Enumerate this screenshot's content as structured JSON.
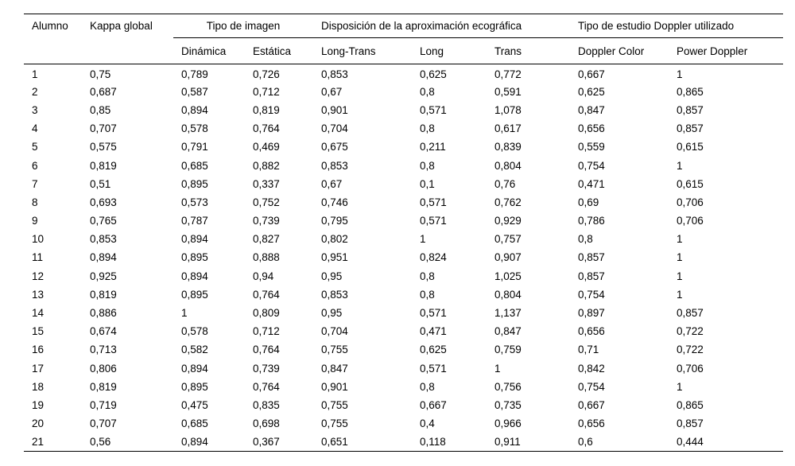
{
  "table": {
    "columns": {
      "alumno": "Alumno",
      "kappa_global": "Kappa global",
      "group_imagen": "Tipo de imagen",
      "group_disposicion": "Disposición de la aproximación ecográfica",
      "group_doppler": "Tipo de estudio Doppler utilizado",
      "sub": {
        "dinamica": "Dinámica",
        "estatica": "Estática",
        "long_trans": "Long-Trans",
        "long": "Long",
        "trans": "Trans",
        "doppler_color": "Doppler Color",
        "power_doppler": "Power Doppler"
      }
    },
    "rows": [
      [
        "1",
        "0,75",
        "0,789",
        "0,726",
        "0,853",
        "0,625",
        "0,772",
        "0,667",
        "1"
      ],
      [
        "2",
        "0,687",
        "0,587",
        "0,712",
        "0,67",
        "0,8",
        "0,591",
        "0,625",
        "0,865"
      ],
      [
        "3",
        "0,85",
        "0,894",
        "0,819",
        "0,901",
        "0,571",
        "1,078",
        "0,847",
        "0,857"
      ],
      [
        "4",
        "0,707",
        "0,578",
        "0,764",
        "0,704",
        "0,8",
        "0,617",
        "0,656",
        "0,857"
      ],
      [
        "5",
        "0,575",
        "0,791",
        "0,469",
        "0,675",
        "0,211",
        "0,839",
        "0,559",
        "0,615"
      ],
      [
        "6",
        "0,819",
        "0,685",
        "0,882",
        "0,853",
        "0,8",
        "0,804",
        "0,754",
        "1"
      ],
      [
        "7",
        "0,51",
        "0,895",
        "0,337",
        "0,67",
        "0,1",
        "0,76",
        "0,471",
        "0,615"
      ],
      [
        "8",
        "0,693",
        "0,573",
        "0,752",
        "0,746",
        "0,571",
        "0,762",
        "0,69",
        "0,706"
      ],
      [
        "9",
        "0,765",
        "0,787",
        "0,739",
        "0,795",
        "0,571",
        "0,929",
        "0,786",
        "0,706"
      ],
      [
        "10",
        "0,853",
        "0,894",
        "0,827",
        "0,802",
        "1",
        "0,757",
        "0,8",
        "1"
      ],
      [
        "11",
        "0,894",
        "0,895",
        "0,888",
        "0,951",
        "0,824",
        "0,907",
        "0,857",
        "1"
      ],
      [
        "12",
        "0,925",
        "0,894",
        "0,94",
        "0,95",
        "0,8",
        "1,025",
        "0,857",
        "1"
      ],
      [
        "13",
        "0,819",
        "0,895",
        "0,764",
        "0,853",
        "0,8",
        "0,804",
        "0,754",
        "1"
      ],
      [
        "14",
        "0,886",
        "1",
        "0,809",
        "0,95",
        "0,571",
        "1,137",
        "0,897",
        "0,857"
      ],
      [
        "15",
        "0,674",
        "0,578",
        "0,712",
        "0,704",
        "0,471",
        "0,847",
        "0,656",
        "0,722"
      ],
      [
        "16",
        "0,713",
        "0,582",
        "0,764",
        "0,755",
        "0,625",
        "0,759",
        "0,71",
        "0,722"
      ],
      [
        "17",
        "0,806",
        "0,894",
        "0,739",
        "0,847",
        "0,571",
        "1",
        "0,842",
        "0,706"
      ],
      [
        "18",
        "0,819",
        "0,895",
        "0,764",
        "0,901",
        "0,8",
        "0,756",
        "0,754",
        "1"
      ],
      [
        "19",
        "0,719",
        "0,475",
        "0,835",
        "0,755",
        "0,667",
        "0,735",
        "0,667",
        "0,865"
      ],
      [
        "20",
        "0,707",
        "0,685",
        "0,698",
        "0,755",
        "0,4",
        "0,966",
        "0,656",
        "0,857"
      ],
      [
        "21",
        "0,56",
        "0,894",
        "0,367",
        "0,651",
        "0,118",
        "0,911",
        "0,6",
        "0,444"
      ]
    ]
  }
}
